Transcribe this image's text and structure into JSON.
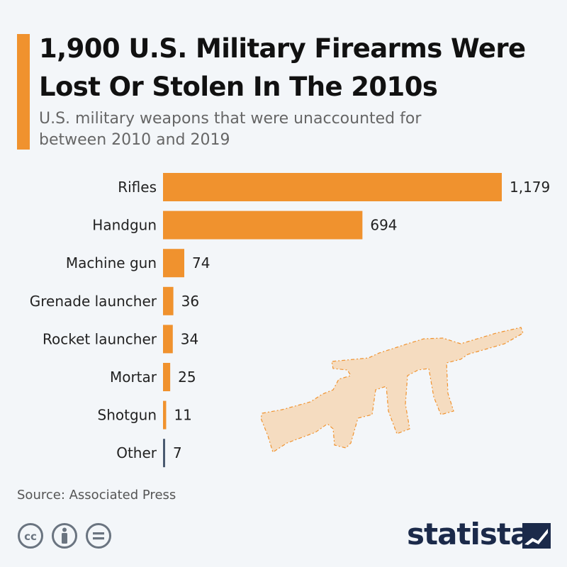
{
  "header": {
    "title_line1": "1,900 U.S. Military Firearms Were",
    "title_line2": "Lost Or Stolen In The 2010s",
    "subtitle_line1": "U.S. military weapons that were unaccounted for",
    "subtitle_line2": "between 2010 and 2019"
  },
  "chart_data": {
    "type": "bar",
    "orientation": "horizontal",
    "categories": [
      "Rifles",
      "Handgun",
      "Machine gun",
      "Grenade launcher",
      "Rocket launcher",
      "Mortar",
      "Shotgun",
      "Other"
    ],
    "values": [
      1179,
      694,
      74,
      36,
      34,
      25,
      11,
      7
    ],
    "value_labels": [
      "1,179",
      "694",
      "74",
      "36",
      "34",
      "25",
      "11",
      "7"
    ],
    "xlim": [
      0,
      1179
    ],
    "grid": false,
    "legend": "none",
    "bar_color": "#f0922e",
    "other_bar_color": "#4a5a70"
  },
  "footer": {
    "source": "Source: Associated Press",
    "brand": "statista"
  },
  "colors": {
    "accent": "#f0922e",
    "background": "#f3f6f9",
    "rifle_fill": "#f5dcc0",
    "brand_navy": "#1b2a4a",
    "icon_gray": "#6a7480"
  },
  "icons": [
    "creative-commons-icon",
    "attribution-icon",
    "no-derivatives-icon",
    "statista-logo-icon",
    "rifle-illustration"
  ]
}
